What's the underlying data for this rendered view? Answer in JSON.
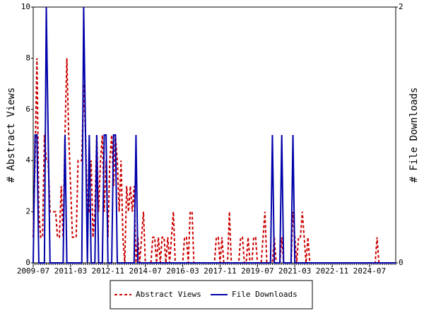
{
  "chart_data": {
    "type": "line",
    "categories": [
      "2009-07",
      null,
      null,
      null,
      null,
      null,
      null,
      null,
      null,
      null,
      null,
      null,
      null,
      null,
      null,
      null,
      null,
      null,
      null,
      null,
      "2011-03",
      null,
      null,
      null,
      null,
      null,
      null,
      null,
      null,
      null,
      null,
      null,
      null,
      null,
      null,
      null,
      null,
      null,
      null,
      null,
      "2012-11",
      null,
      null,
      null,
      null,
      null,
      null,
      null,
      null,
      null,
      null,
      null,
      null,
      null,
      null,
      null,
      null,
      null,
      null,
      null,
      "2014-07",
      null,
      null,
      null,
      null,
      null,
      null,
      null,
      null,
      null,
      null,
      null,
      null,
      null,
      null,
      null,
      null,
      null,
      null,
      null,
      "2016-03",
      null,
      null,
      null,
      null,
      null,
      null,
      null,
      null,
      null,
      null,
      null,
      null,
      null,
      null,
      null,
      null,
      null,
      null,
      null,
      "2017-11",
      null,
      null,
      null,
      null,
      null,
      null,
      null,
      null,
      null,
      null,
      null,
      null,
      null,
      null,
      null,
      null,
      null,
      null,
      null,
      "2019-07",
      null,
      null,
      null,
      null,
      null,
      null,
      null,
      null,
      null,
      null,
      null,
      null,
      null,
      null,
      null,
      null,
      null,
      null,
      null,
      "2021-03",
      null,
      null,
      null,
      null,
      null,
      null,
      null,
      null,
      null,
      null,
      null,
      null,
      null,
      null,
      null,
      null,
      null,
      null,
      null,
      "2022-11",
      null,
      null,
      null,
      null,
      null,
      null,
      null,
      null,
      null,
      null,
      null,
      null,
      null,
      null,
      null,
      null,
      null,
      null,
      null,
      "2024-07",
      null,
      null,
      null,
      null,
      null,
      null,
      null,
      null,
      null,
      null,
      null,
      null,
      null,
      null
    ],
    "series": [
      {
        "name": "Abstract Views",
        "color": "#cc0000",
        "dash": true,
        "axis": "y",
        "values": [
          1,
          4,
          8,
          2,
          1,
          1,
          5,
          4,
          4,
          2,
          2,
          2,
          2,
          1,
          1,
          3,
          1,
          5,
          8,
          5,
          3,
          1,
          1,
          1,
          4,
          4,
          4,
          7,
          5,
          2,
          2,
          4,
          1,
          2,
          5,
          2,
          4,
          5,
          2,
          4,
          1,
          4,
          5,
          3,
          5,
          4,
          2,
          4,
          1,
          0,
          3,
          2,
          3,
          2,
          3,
          0,
          1,
          0,
          1,
          2,
          0,
          0,
          0,
          0,
          1,
          1,
          0,
          1,
          0,
          1,
          1,
          0,
          1,
          0,
          1,
          2,
          0,
          0,
          0,
          0,
          0,
          1,
          1,
          0,
          2,
          2,
          0,
          0,
          0,
          0,
          0,
          0,
          0,
          0,
          0,
          0,
          0,
          0,
          1,
          1,
          0,
          1,
          0,
          0,
          0,
          2,
          0,
          0,
          0,
          0,
          0,
          1,
          1,
          0,
          0,
          1,
          0,
          0,
          1,
          1,
          0,
          0,
          0,
          1,
          2,
          0,
          0,
          0,
          0,
          1,
          0,
          0,
          0,
          1,
          0,
          0,
          0,
          0,
          0,
          2,
          1,
          0,
          1,
          1,
          2,
          1,
          0,
          1,
          0,
          0,
          0,
          0,
          0,
          0,
          0,
          0,
          0,
          0,
          0,
          0,
          0,
          0,
          0,
          0,
          0,
          0,
          0,
          0,
          0,
          0,
          0,
          0,
          0,
          0,
          0,
          0,
          0,
          0,
          0,
          0,
          0,
          0,
          0,
          0,
          1,
          0,
          0,
          0,
          0,
          0,
          0,
          0,
          0,
          0,
          0
        ]
      },
      {
        "name": "File Downloads",
        "color": "#0000aa",
        "dash": false,
        "axis": "y2",
        "values": [
          0,
          1,
          1,
          0,
          0,
          0,
          0,
          2,
          1,
          0,
          0,
          0,
          0,
          0,
          0,
          0,
          0,
          1,
          0,
          0,
          0,
          0,
          0,
          0,
          0,
          0,
          0,
          2,
          1,
          0,
          1,
          0,
          0,
          0,
          1,
          0,
          0,
          0,
          1,
          1,
          0,
          0,
          0,
          1,
          1,
          0,
          0,
          0,
          0,
          0,
          0,
          0,
          0,
          0,
          0,
          1,
          0,
          0,
          0,
          0,
          0,
          0,
          0,
          0,
          0,
          0,
          0,
          0,
          0,
          0,
          0,
          0,
          0,
          0,
          0,
          0,
          0,
          0,
          0,
          0,
          0,
          0,
          0,
          0,
          0,
          0,
          0,
          0,
          0,
          0,
          0,
          0,
          0,
          0,
          0,
          0,
          0,
          0,
          0,
          0,
          0,
          0,
          0,
          0,
          0,
          0,
          0,
          0,
          0,
          0,
          0,
          0,
          0,
          0,
          0,
          0,
          0,
          0,
          0,
          0,
          0,
          0,
          0,
          0,
          0,
          0,
          0,
          0,
          1,
          0,
          0,
          0,
          0,
          1,
          0,
          0,
          0,
          0,
          0,
          1,
          0,
          0,
          0,
          0,
          0,
          0,
          0,
          0,
          0,
          0,
          0,
          0,
          0,
          0,
          0,
          0,
          0,
          0,
          0,
          0,
          0,
          0,
          0,
          0,
          0,
          0,
          0,
          0,
          0,
          0,
          0,
          0,
          0,
          0,
          0,
          0,
          0,
          0,
          0,
          0,
          0,
          0,
          0,
          0,
          0,
          0,
          0,
          0,
          0,
          0,
          0,
          0,
          0,
          0,
          0
        ]
      }
    ],
    "y_label": "# Abstract Views",
    "y2_label": "# File Downloads",
    "ylim": [
      0,
      10
    ],
    "yticks": [
      0,
      2,
      4,
      6,
      8,
      10
    ],
    "y2lim": [
      0,
      2
    ],
    "y2ticks": [
      0,
      2
    ],
    "legend": "bottom",
    "grid": false
  }
}
